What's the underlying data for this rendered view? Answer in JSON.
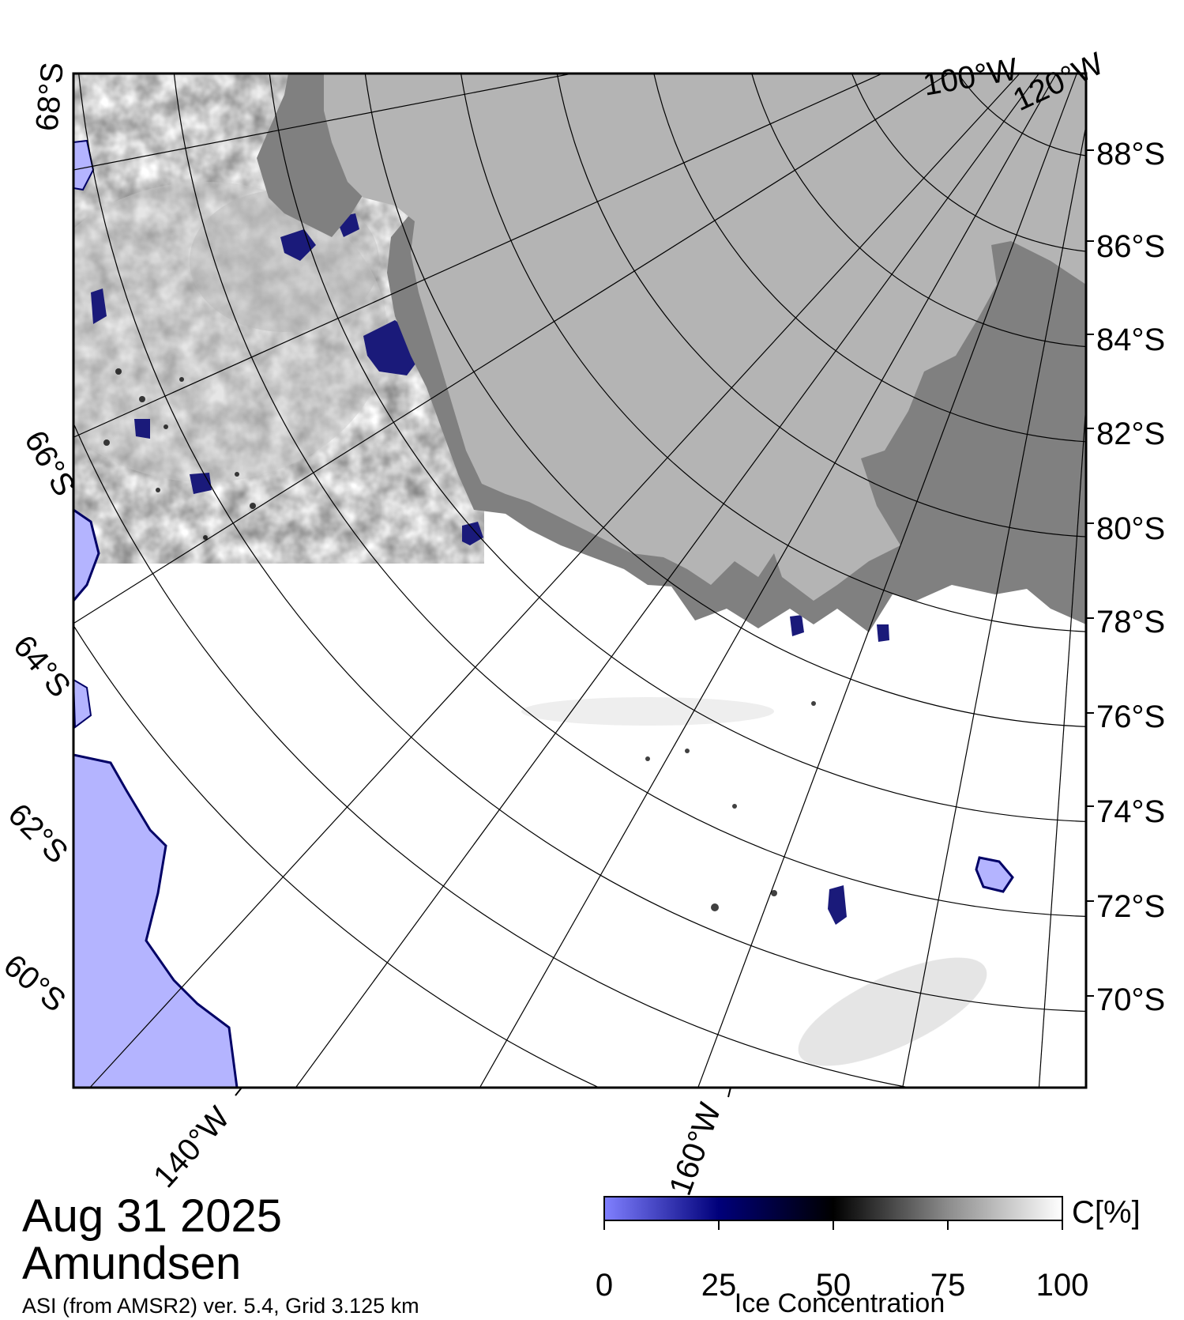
{
  "map": {
    "date": "Aug 31 2025",
    "region": "Amundsen",
    "source": "ASI (from AMSR2) ver. 5.4,  Grid 3.125 km",
    "colors": {
      "frame": "#000000",
      "ice_high": "#ffffff",
      "ice_mid": "#000000",
      "ice_low": "#00006e",
      "open_water": "#b4b4ff",
      "land": "#b4b4b4",
      "ice_shelf": "#808080",
      "graticule": "#000000"
    },
    "latitude_labels_right": [
      "88°S",
      "86°S",
      "84°S",
      "82°S",
      "80°S",
      "78°S",
      "76°S",
      "74°S",
      "72°S",
      "70°S"
    ],
    "latitude_labels_left": [
      "68°S",
      "66°S",
      "64°S",
      "62°S",
      "60°S"
    ],
    "longitude_labels": [
      "140°W",
      "160°W",
      "100°W",
      "120°W"
    ]
  },
  "colorbar": {
    "ticks": [
      "0",
      "25",
      "50",
      "75",
      "100"
    ],
    "unit": "C[%]",
    "title": "Ice Concentration",
    "stops": [
      {
        "value": 0,
        "color": "#8080ff"
      },
      {
        "value": 25,
        "color": "#00007a"
      },
      {
        "value": 50,
        "color": "#000000"
      },
      {
        "value": 75,
        "color": "#8c8c8c"
      },
      {
        "value": 100,
        "color": "#ffffff"
      }
    ]
  }
}
